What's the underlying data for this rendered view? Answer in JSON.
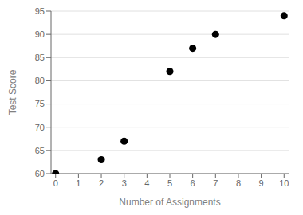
{
  "chart_data": {
    "type": "scatter",
    "x": [
      0,
      2,
      3,
      5,
      6,
      7,
      10
    ],
    "values": [
      60,
      63,
      67,
      82,
      87,
      90,
      94
    ],
    "xlabel": "Number of Assignments",
    "ylabel": "Test Score",
    "xlim": [
      -0.2,
      10.2
    ],
    "ylim": [
      60,
      95
    ],
    "xticks": [
      0,
      1,
      2,
      3,
      4,
      5,
      6,
      7,
      8,
      9,
      10
    ],
    "yticks": [
      60,
      65,
      70,
      75,
      80,
      85,
      90,
      95
    ],
    "color": "black",
    "grid": "y"
  }
}
